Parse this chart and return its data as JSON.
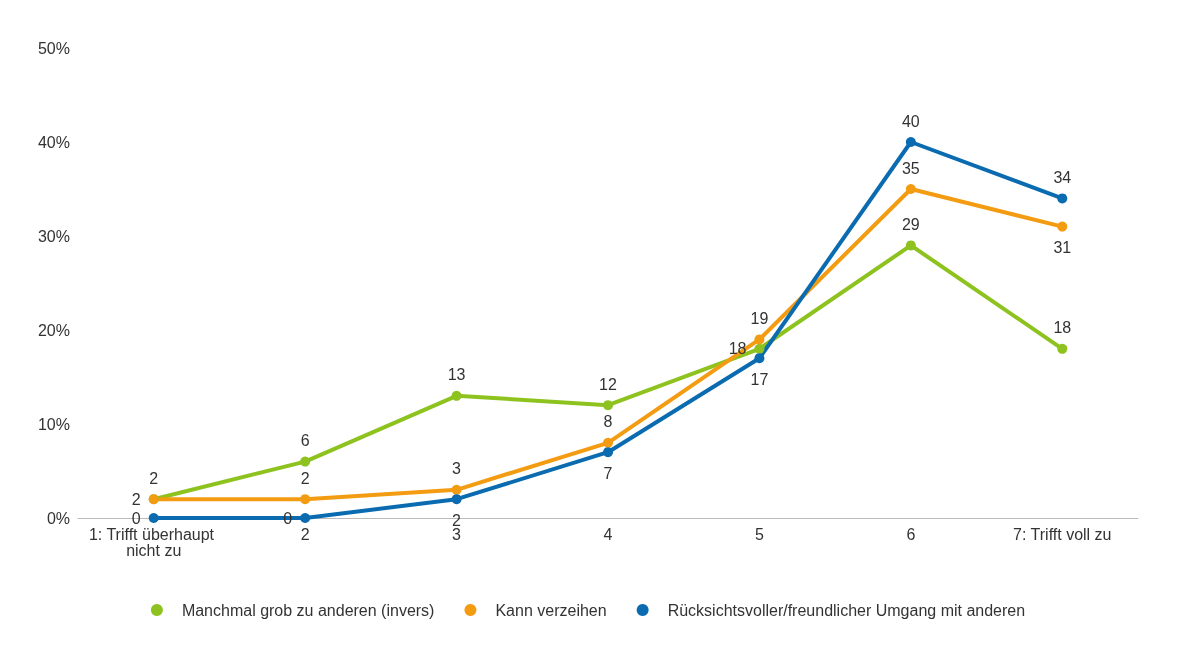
{
  "chart_data": {
    "type": "line",
    "categories": [
      "1: Trifft überhaupt nicht zu",
      "2",
      "3",
      "4",
      "5",
      "6",
      "7: Trifft voll zu"
    ],
    "series": [
      {
        "name": "Manchmal grob zu anderen (invers)",
        "color": "#8dc21f",
        "values": [
          2,
          6,
          13,
          12,
          18,
          29,
          18
        ]
      },
      {
        "name": "Kann verzeihen",
        "color": "#f39c12",
        "values": [
          2,
          2,
          3,
          8,
          19,
          35,
          31
        ]
      },
      {
        "name": "Rücksichtsvoller/freundlicher Umgang mit anderen",
        "color": "#0a6bb0",
        "values": [
          0,
          0,
          2,
          7,
          17,
          40,
          34
        ]
      }
    ],
    "ylim": [
      0,
      50
    ],
    "yticks": [
      {
        "value": 0,
        "label": "0%"
      },
      {
        "value": 10,
        "label": "10%"
      },
      {
        "value": 20,
        "label": "20%"
      },
      {
        "value": 30,
        "label": "30%"
      },
      {
        "value": 40,
        "label": "40%"
      },
      {
        "value": 50,
        "label": "50%"
      }
    ],
    "data_labels": true,
    "grid": false,
    "legend": "bottom",
    "marker": "circle",
    "line_style": "solid"
  }
}
